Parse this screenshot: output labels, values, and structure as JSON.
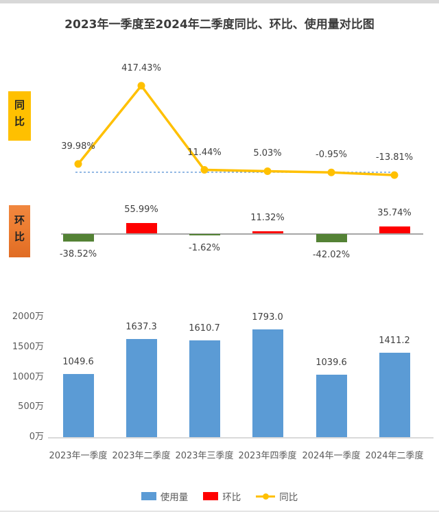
{
  "title": "2023年一季度至2024年二季度同比、环比、使用量对比图",
  "sections": {
    "yoy_label": "同比",
    "mom_label": "环比"
  },
  "categories": [
    "2023年一季度",
    "2023年二季度",
    "2023年三季度",
    "2023年四季度",
    "2024年一季度",
    "2024年二季度"
  ],
  "chart_data": [
    {
      "type": "line",
      "name": "同比",
      "unit": "%",
      "categories": [
        "2023年一季度",
        "2023年二季度",
        "2023年三季度",
        "2023年四季度",
        "2024年一季度",
        "2024年二季度"
      ],
      "values": [
        39.98,
        417.43,
        11.44,
        5.03,
        -0.95,
        -13.81
      ],
      "labels": [
        "39.98%",
        "417.43%",
        "11.44%",
        "5.03%",
        "-0.95%",
        "-13.81%"
      ],
      "line_color": "#FFC000",
      "marker": "circle",
      "zero_line": {
        "style": "dashed",
        "color": "#6FA0DC"
      }
    },
    {
      "type": "bar",
      "name": "环比",
      "unit": "%",
      "categories": [
        "2023年一季度",
        "2023年二季度",
        "2023年三季度",
        "2023年四季度",
        "2024年一季度",
        "2024年二季度"
      ],
      "values": [
        -38.52,
        55.99,
        -1.62,
        11.32,
        -42.02,
        35.74
      ],
      "labels": [
        "-38.52%",
        "55.99%",
        "-1.62%",
        "11.32%",
        "-42.02%",
        "35.74%"
      ],
      "positive_color": "#FF0000",
      "negative_color": "#548235",
      "axis_color": "#A6A6A6"
    },
    {
      "type": "bar",
      "name": "使用量",
      "unit": "万",
      "categories": [
        "2023年一季度",
        "2023年二季度",
        "2023年三季度",
        "2023年四季度",
        "2024年一季度",
        "2024年二季度"
      ],
      "values": [
        1049.6,
        1637.3,
        1610.7,
        1793.0,
        1039.6,
        1411.2
      ],
      "labels": [
        "1049.6",
        "1637.3",
        "1610.7",
        "1793.0",
        "1039.6",
        "1411.2"
      ],
      "bar_color": "#5B9BD5",
      "y_ticks": [
        "2000万",
        "1500万",
        "1000万",
        "500万",
        "0万"
      ],
      "y_tick_values": [
        2000,
        1500,
        1000,
        500,
        0
      ],
      "ylim": [
        0,
        2000
      ],
      "grid": "off"
    }
  ],
  "legend": {
    "items": [
      {
        "label": "使用量",
        "swatch": "square",
        "color": "#5B9BD5"
      },
      {
        "label": "环比",
        "swatch": "square",
        "color": "#FF0000"
      },
      {
        "label": "同比",
        "swatch": "line-marker",
        "color": "#FFC000"
      }
    ]
  }
}
